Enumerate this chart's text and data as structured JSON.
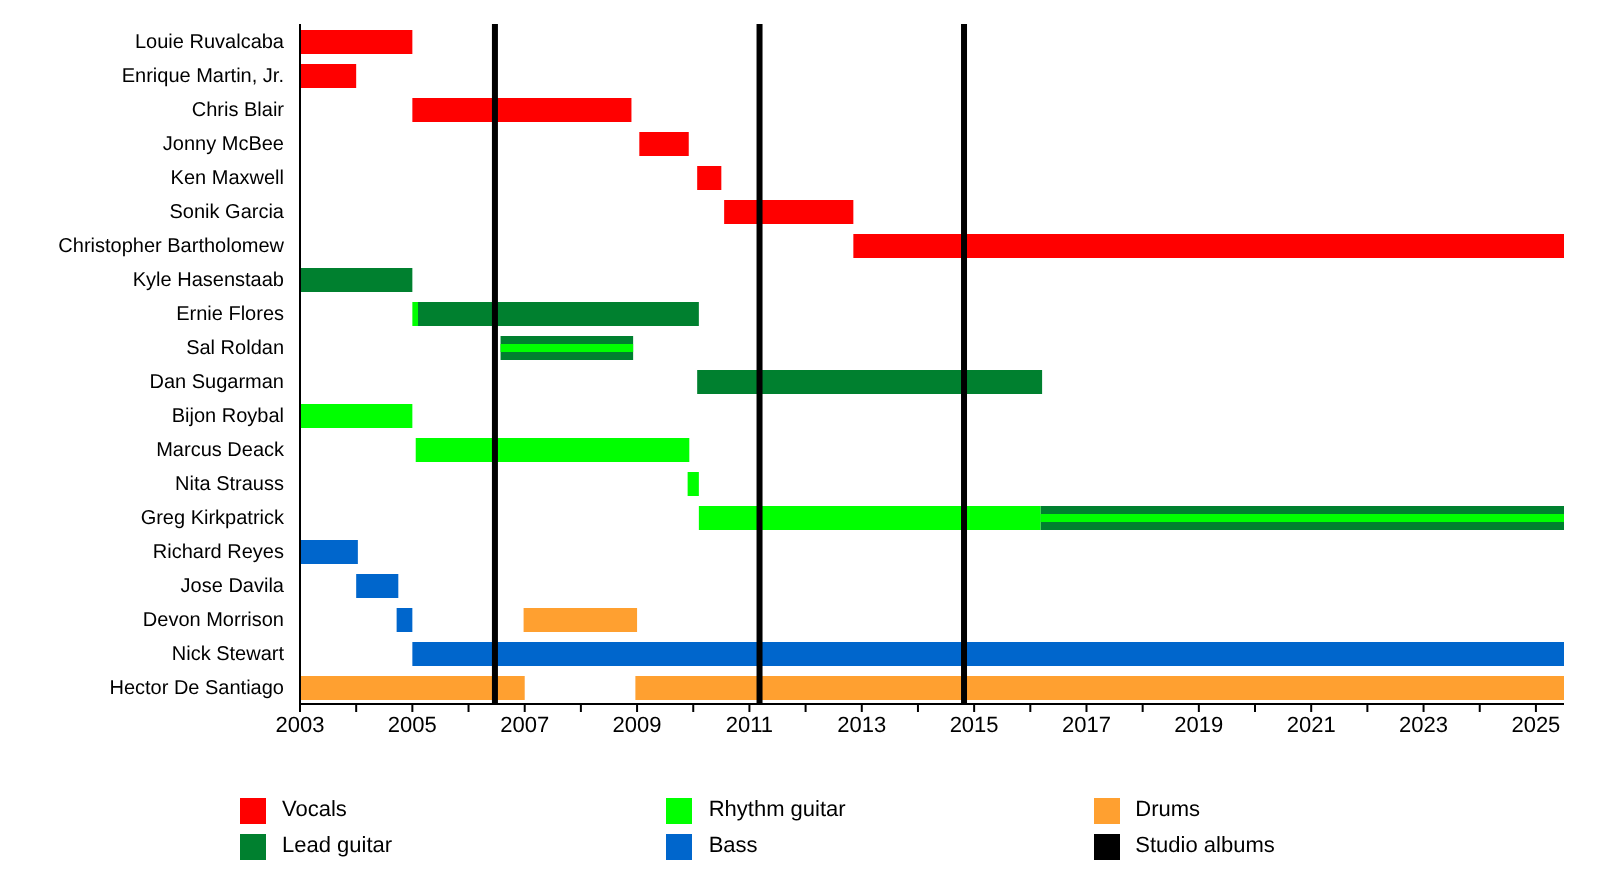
{
  "chart_data": {
    "type": "bar",
    "orientation": "horizontal",
    "categories": [
      "Louie Ruvalcaba",
      "Enrique Martin, Jr.",
      "Chris Blair",
      "Jonny McBee",
      "Ken Maxwell",
      "Sonik Garcia",
      "Christopher Bartholomew",
      "Kyle Hasenstaab",
      "Ernie Flores",
      "Sal Roldan",
      "Dan Sugarman",
      "Bijon Roybal",
      "Marcus Deack",
      "Nita Strauss",
      "Greg Kirkpatrick",
      "Richard Reyes",
      "Jose Davila",
      "Devon Morrison",
      "Nick Stewart",
      "Hector De Santiago"
    ],
    "series": [
      {
        "name": "Vocals",
        "color": "#ff0000",
        "base": [
          2003,
          2003,
          2005,
          2009.04,
          2010.07,
          2010.55,
          2012.85,
          null,
          null,
          null,
          null,
          null,
          null,
          null,
          null,
          null,
          null,
          null,
          null,
          null
        ],
        "values": [
          2,
          1,
          3.9,
          0.88,
          0.43,
          2.3,
          12.65,
          null,
          null,
          null,
          null,
          null,
          null,
          null,
          null,
          null,
          null,
          null,
          null,
          null
        ]
      },
      {
        "name": "Lead guitar",
        "color": "#00802f",
        "base": [
          null,
          null,
          null,
          null,
          null,
          null,
          null,
          2003,
          2005.1,
          2006.57,
          2010.07,
          null,
          null,
          null,
          2016.18,
          null,
          null,
          null,
          null,
          null
        ],
        "values": [
          null,
          null,
          null,
          null,
          null,
          null,
          null,
          2,
          5,
          2.36,
          6.14,
          null,
          null,
          null,
          9.32,
          null,
          null,
          null,
          null,
          null
        ]
      },
      {
        "name": "Rhythm guitar",
        "color": "#00ff00",
        "base": [
          null,
          null,
          null,
          null,
          null,
          null,
          null,
          null,
          2005,
          null,
          null,
          2003,
          2005.06,
          2009.9,
          2010.1,
          null,
          null,
          null,
          null,
          null
        ],
        "values": [
          null,
          null,
          null,
          null,
          null,
          null,
          null,
          null,
          0.1,
          null,
          null,
          2,
          4.87,
          0.2,
          6.08,
          null,
          null,
          null,
          null,
          null
        ]
      },
      {
        "name": "Bass",
        "color": "#0066cc",
        "base": [
          null,
          null,
          null,
          null,
          null,
          null,
          null,
          null,
          null,
          null,
          null,
          null,
          null,
          null,
          null,
          2003,
          2004,
          2004.72,
          2005,
          null
        ],
        "values": [
          null,
          null,
          null,
          null,
          null,
          null,
          null,
          null,
          null,
          null,
          null,
          null,
          null,
          null,
          null,
          1.03,
          0.75,
          0.28,
          20.5,
          null
        ]
      },
      {
        "name": "Drums",
        "color": "#ffa030",
        "base": [
          null,
          null,
          null,
          null,
          null,
          null,
          null,
          null,
          null,
          null,
          null,
          null,
          null,
          null,
          null,
          null,
          null,
          2006.98,
          null,
          2003
        ],
        "values": [
          null,
          null,
          null,
          null,
          null,
          null,
          null,
          null,
          null,
          null,
          null,
          null,
          null,
          null,
          null,
          null,
          null,
          2.02,
          null,
          4
        ]
      },
      {
        "color": "#00ff00",
        "base": [
          null,
          null,
          null,
          null,
          null,
          null,
          null,
          null,
          null,
          2006.57,
          null,
          null,
          null,
          null,
          2016.18,
          null,
          null,
          null,
          null,
          null
        ],
        "values": [
          null,
          null,
          null,
          null,
          null,
          null,
          null,
          null,
          null,
          2.36,
          null,
          null,
          null,
          null,
          9.32,
          null,
          null,
          null,
          null,
          null
        ]
      },
      {
        "color": "#ffa030",
        "base": [
          null,
          null,
          null,
          null,
          null,
          null,
          null,
          null,
          null,
          null,
          null,
          null,
          null,
          null,
          null,
          null,
          null,
          null,
          null,
          2008.97
        ],
        "values": [
          null,
          null,
          null,
          null,
          null,
          null,
          null,
          null,
          null,
          null,
          null,
          null,
          null,
          null,
          null,
          null,
          null,
          null,
          null,
          16.53
        ]
      }
    ],
    "xlim": [
      2003,
      2025.5
    ],
    "xticks": [
      2003,
      {
        "value": 2004,
        "label": null
      },
      2005,
      {
        "value": 2006,
        "label": null
      },
      2007,
      {
        "value": 2008,
        "label": null
      },
      2009,
      {
        "value": 2010,
        "label": null
      },
      2011,
      {
        "value": 2012,
        "label": null
      },
      2013,
      {
        "value": 2014,
        "label": null
      },
      2015,
      {
        "value": 2016,
        "label": null
      },
      2017,
      {
        "value": 2018,
        "label": null
      },
      2019,
      {
        "value": 2020,
        "label": null
      },
      2021,
      {
        "value": 2022,
        "label": null
      },
      2023,
      {
        "value": 2024,
        "label": null
      },
      2025
    ],
    "ref_lines": [
      {
        "axis": "x",
        "value": 2006.47,
        "label": "Studio albums",
        "color": "#000000"
      },
      {
        "axis": "x",
        "value": 2011.18,
        "color": "#000000"
      },
      {
        "axis": "x",
        "value": 2014.82,
        "color": "#000000"
      }
    ],
    "legend": "bottom"
  }
}
